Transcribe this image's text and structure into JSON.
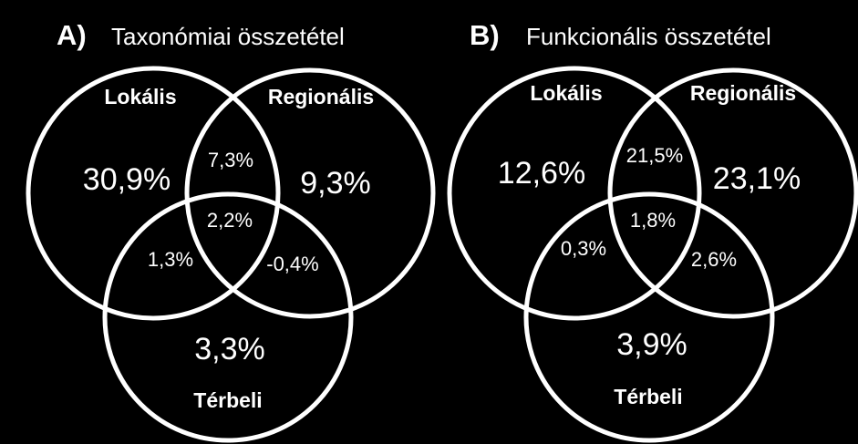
{
  "colors": {
    "background": "#000000",
    "foreground": "#ffffff"
  },
  "panels": [
    {
      "letter": "A)",
      "title": "Taxonómiai összetétel",
      "sets": {
        "local": "Lokális",
        "regional": "Regionális",
        "spatial": "Térbeli"
      },
      "values": {
        "local_only": "30,9%",
        "regional_only": "9,3%",
        "spatial_only": "3,3%",
        "local_regional": "7,3%",
        "local_spatial": "1,3%",
        "regional_spatial": "-0,4%",
        "all_three": "2,2%"
      }
    },
    {
      "letter": "B)",
      "title": "Funkcionális összetétel",
      "sets": {
        "local": "Lokális",
        "regional": "Regionális",
        "spatial": "Térbeli"
      },
      "values": {
        "local_only": "12,6%",
        "regional_only": "23,1%",
        "spatial_only": "3,9%",
        "local_regional": "21,5%",
        "local_spatial": "0,3%",
        "regional_spatial": "2,6%",
        "all_three": "1,8%"
      }
    }
  ]
}
